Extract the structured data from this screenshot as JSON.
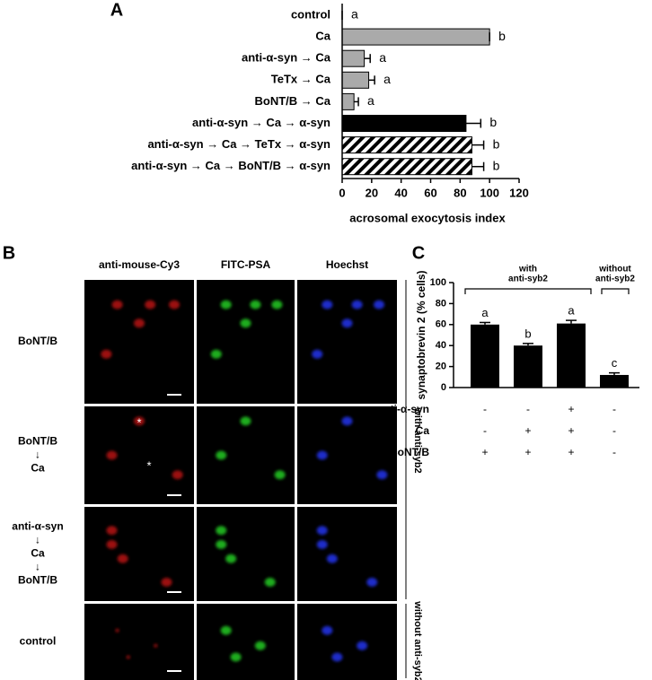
{
  "chart_data": [
    {
      "type": "hbar",
      "panel": "A",
      "categories": [
        "control",
        "Ca",
        "anti-α-syn → Ca",
        "TeTx → Ca",
        "BoNT/B → Ca",
        "anti-α-syn → Ca → α-syn",
        "anti-α-syn → Ca → TeTx → α-syn",
        "anti-α-syn → Ca → BoNT/B → α-syn"
      ],
      "values": [
        0,
        100,
        15,
        18,
        8,
        84,
        88,
        88
      ],
      "errors": [
        0,
        0,
        4,
        4,
        3,
        10,
        8,
        8
      ],
      "annotations": [
        "a",
        "b",
        "a",
        "a",
        "a",
        "b",
        "b",
        "b"
      ],
      "colors": [
        "#ffffff",
        "#aaaaaa",
        "#aaaaaa",
        "#aaaaaa",
        "#aaaaaa",
        "#000000",
        "#ffffff",
        "#ffffff"
      ],
      "hatched": [
        false,
        false,
        false,
        false,
        false,
        false,
        true,
        true
      ],
      "xlim": [
        0,
        120
      ],
      "xticks": [
        0,
        20,
        40,
        60,
        80,
        100,
        120
      ],
      "xlabel": "acrosomal exocytosis index"
    },
    {
      "type": "bar",
      "panel": "C",
      "categories": [
        null,
        null,
        null,
        null
      ],
      "values": [
        60,
        40,
        61,
        12
      ],
      "errors": [
        2,
        2,
        3,
        2
      ],
      "annotations": [
        "a",
        "b",
        "a",
        "c"
      ],
      "color": "#000000",
      "ylim": [
        0,
        100
      ],
      "yticks": [
        0,
        20,
        40,
        60,
        80,
        100
      ],
      "ylabel": "synaptobrevin 2 (% cells)",
      "conditions": [
        {
          "name": "anti-α-syn",
          "signs": [
            "-",
            "-",
            "+",
            "-"
          ]
        },
        {
          "name": "Ca",
          "signs": [
            "-",
            "+",
            "+",
            "-"
          ]
        },
        {
          "name": "BoNT/B",
          "signs": [
            "+",
            "+",
            "+",
            "-"
          ]
        }
      ],
      "groups": [
        [
          "with",
          "anti-syb2"
        ],
        [
          "without",
          "anti-syb2"
        ]
      ]
    }
  ],
  "micrographs": {
    "panel": "B",
    "column_headers": [
      "anti-mouse-Cy3",
      "FITC-PSA",
      "Hoechst"
    ],
    "row_labels": [
      [
        "BoNT/B"
      ],
      [
        "BoNT/B",
        "↓",
        "Ca"
      ],
      [
        "anti-α-syn",
        "↓",
        "Ca",
        "↓",
        "BoNT/B"
      ],
      [
        "control"
      ]
    ],
    "group_labels": [
      "with anti-syb2",
      "without anti-syb2"
    ],
    "asterisks": [
      "*",
      "*"
    ]
  }
}
